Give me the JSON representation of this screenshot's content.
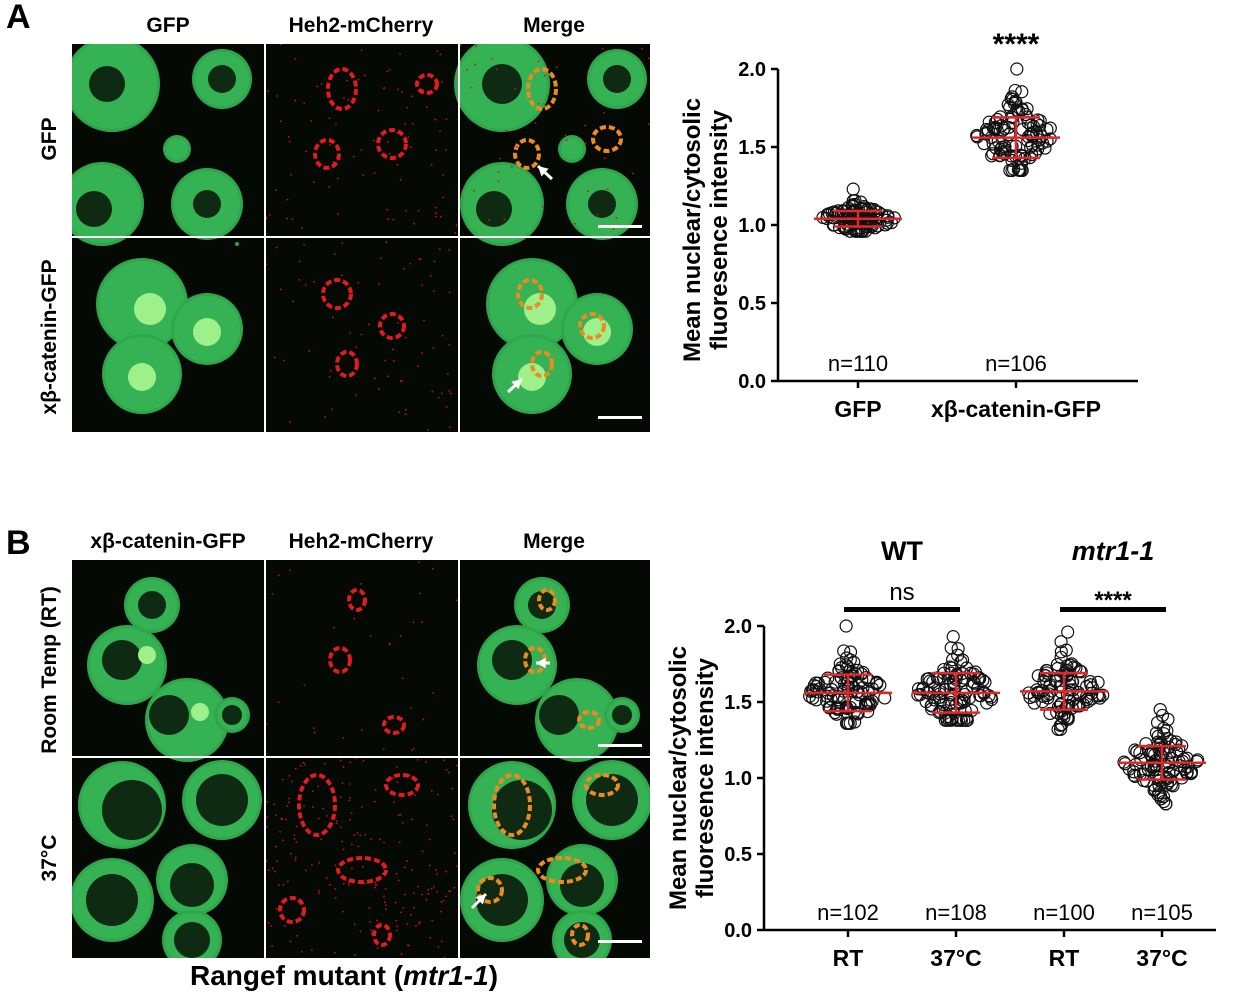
{
  "panel_a": {
    "letter": "A",
    "columns": [
      "GFP",
      "Heh2-mCherry",
      "Merge"
    ],
    "rows": [
      "GFP",
      "xβ-catenin-GFP"
    ]
  },
  "panel_b": {
    "letter": "B",
    "columns": [
      "xβ-catenin-GFP",
      "Heh2-mCherry",
      "Merge"
    ],
    "rows": [
      "Room Temp (RT)",
      "37°C"
    ],
    "bottom_title_prefix": "Rangef mutant (",
    "bottom_title_italic": "mtr1-1",
    "bottom_title_suffix": ")"
  },
  "chart_data": [
    {
      "type": "scatter",
      "ylabel_line1": "Mean nuclear/cytosolic",
      "ylabel_line2": "fluoresence intensity",
      "ylim": [
        0,
        2.0
      ],
      "yticks": [
        "0.0",
        "0.5",
        "1.0",
        "1.5",
        "2.0"
      ],
      "categories": [
        "GFP",
        "xβ-catenin-GFP"
      ],
      "n_labels": [
        "n=110",
        "n=106"
      ],
      "significance": "****",
      "series": [
        {
          "category": "GFP",
          "n": 110,
          "mean": 1.04,
          "sd": 0.05,
          "min": 0.96,
          "max": 1.23
        },
        {
          "category": "xβ-catenin-GFP",
          "n": 106,
          "mean": 1.56,
          "sd": 0.13,
          "min": 1.35,
          "max": 2.0
        }
      ],
      "mean_line_color": "#e3262b",
      "marker": "open-circle"
    },
    {
      "type": "scatter",
      "ylabel_line1": "Mean nuclear/cytosolic",
      "ylabel_line2": "fluoresence intensity",
      "ylim": [
        0,
        2.0
      ],
      "yticks": [
        "0.0",
        "0.5",
        "1.0",
        "1.5",
        "2.0"
      ],
      "group_labels": [
        "WT",
        "mtr1-1"
      ],
      "categories": [
        "RT",
        "37°C",
        "RT",
        "37°C"
      ],
      "n_labels": [
        "n=102",
        "n=108",
        "n=100",
        "n=105"
      ],
      "comparisons": [
        {
          "label": "ns",
          "from": 0,
          "to": 1
        },
        {
          "label": "****",
          "from": 2,
          "to": 3
        }
      ],
      "series": [
        {
          "category": "RT",
          "group": "WT",
          "n": 102,
          "mean": 1.56,
          "sd": 0.12,
          "min": 1.36,
          "max": 2.0
        },
        {
          "category": "37°C",
          "group": "WT",
          "n": 108,
          "mean": 1.56,
          "sd": 0.13,
          "min": 1.38,
          "max": 1.93
        },
        {
          "category": "RT",
          "group": "mtr1-1",
          "n": 100,
          "mean": 1.57,
          "sd": 0.12,
          "min": 1.32,
          "max": 1.96
        },
        {
          "category": "37°C",
          "group": "mtr1-1",
          "n": 105,
          "mean": 1.1,
          "sd": 0.11,
          "min": 0.83,
          "max": 1.45
        }
      ],
      "mean_line_color": "#e3262b",
      "marker": "open-circle"
    }
  ]
}
